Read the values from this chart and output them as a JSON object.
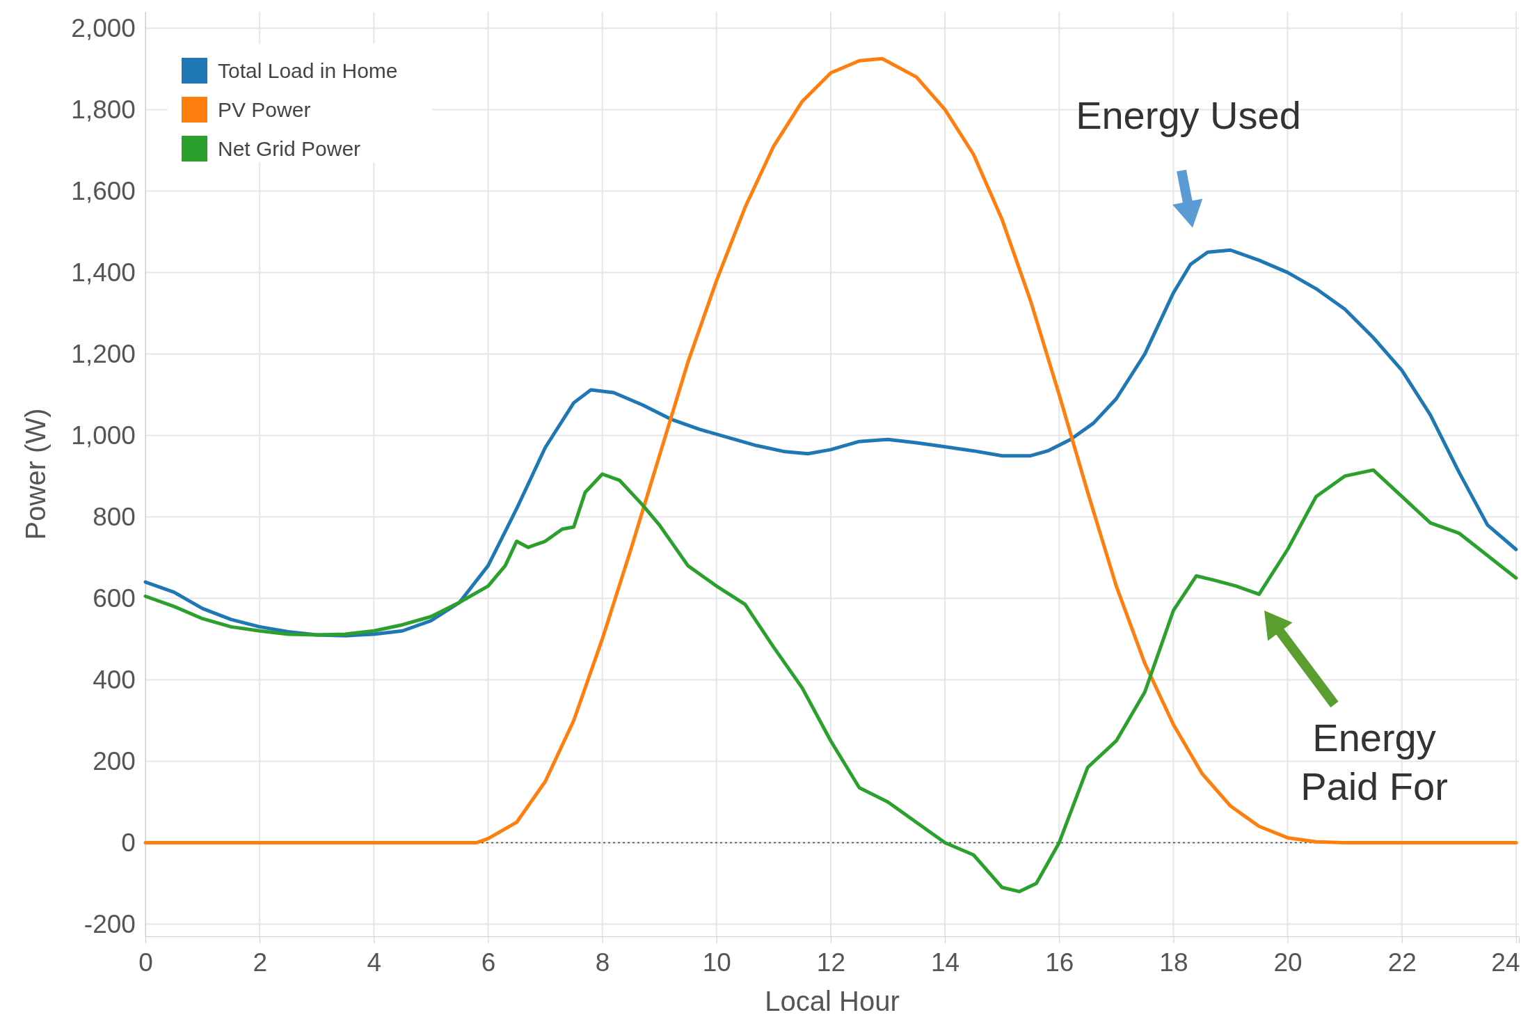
{
  "chart_data": {
    "type": "line",
    "xlabel": "Local Hour",
    "ylabel": "Power (W)",
    "xlim": [
      0,
      24.05
    ],
    "xticks": [
      0,
      2,
      4,
      6,
      8,
      10,
      12,
      14,
      16,
      18,
      20,
      22,
      24
    ],
    "ylim": [
      -230,
      2040
    ],
    "yticks": [
      {
        "value": -200,
        "label": "-200"
      },
      {
        "value": 0,
        "label": "0"
      },
      {
        "value": 200,
        "label": "200"
      },
      {
        "value": 400,
        "label": "400"
      },
      {
        "value": 600,
        "label": "600"
      },
      {
        "value": 800,
        "label": "800"
      },
      {
        "value": 1000,
        "label": "1,000"
      },
      {
        "value": 1200,
        "label": "1,200"
      },
      {
        "value": 1400,
        "label": "1,400"
      },
      {
        "value": 1600,
        "label": "1,600"
      },
      {
        "value": 1800,
        "label": "1,800"
      },
      {
        "value": 2000,
        "label": "2,000"
      }
    ],
    "grid": true,
    "legend": "top left",
    "marker": "none",
    "line_style": "solid",
    "ref_lines": [
      {
        "axis": "y",
        "value": 0,
        "label": null,
        "color": "#444444",
        "line_style": "dotted"
      }
    ],
    "annotations": [
      "Energy Used",
      "Energy\nPaid For"
    ],
    "series": [
      {
        "name": "Total Load in Home",
        "color": "#1f77b4",
        "x": [
          0,
          0.5,
          1,
          1.5,
          2,
          2.5,
          3,
          3.5,
          4,
          4.5,
          5,
          5.5,
          6,
          6.5,
          7,
          7.5,
          7.8,
          8.2,
          8.7,
          9.2,
          9.7,
          10.2,
          10.7,
          11.2,
          11.6,
          12,
          12.5,
          13,
          13.5,
          14,
          14.5,
          15,
          15.5,
          15.8,
          16.2,
          16.6,
          17,
          17.5,
          18,
          18.3,
          18.6,
          19,
          19.5,
          20,
          20.5,
          21,
          21.5,
          22,
          22.5,
          23,
          23.5,
          24
        ],
        "values": [
          640,
          615,
          575,
          548,
          530,
          518,
          510,
          508,
          512,
          520,
          545,
          590,
          680,
          820,
          970,
          1080,
          1112,
          1105,
          1075,
          1040,
          1015,
          995,
          975,
          960,
          955,
          965,
          985,
          990,
          982,
          972,
          962,
          950,
          950,
          962,
          990,
          1030,
          1090,
          1200,
          1350,
          1420,
          1450,
          1455,
          1430,
          1400,
          1360,
          1310,
          1240,
          1160,
          1050,
          910,
          780,
          720
        ]
      },
      {
        "name": "PV Power",
        "color": "#ff7f0e",
        "x": [
          0,
          5.8,
          6,
          6.5,
          7,
          7.5,
          8,
          8.5,
          9,
          9.5,
          10,
          10.5,
          11,
          11.5,
          12,
          12.5,
          12.9,
          13.5,
          14,
          14.5,
          15,
          15.5,
          16,
          16.5,
          17,
          17.5,
          18,
          18.5,
          19,
          19.5,
          20,
          20.5,
          21,
          24
        ],
        "values": [
          0,
          0,
          10,
          50,
          150,
          300,
          500,
          720,
          950,
          1180,
          1380,
          1560,
          1710,
          1820,
          1890,
          1920,
          1925,
          1880,
          1800,
          1690,
          1530,
          1330,
          1100,
          860,
          630,
          440,
          290,
          170,
          90,
          40,
          12,
          2,
          0,
          0
        ]
      },
      {
        "name": "Net Grid Power",
        "color": "#2ca02c",
        "x": [
          0,
          0.5,
          1,
          1.5,
          2,
          2.5,
          3,
          3.5,
          4,
          4.5,
          5,
          5.5,
          6,
          6.3,
          6.5,
          6.7,
          7,
          7.3,
          7.5,
          7.7,
          8,
          8.3,
          8.7,
          9,
          9.5,
          10,
          10.5,
          11,
          11.5,
          12,
          12.5,
          13,
          13.5,
          14,
          14.5,
          15,
          15.3,
          15.6,
          16,
          16.5,
          17,
          17.5,
          18,
          18.4,
          18.7,
          19.1,
          19.5,
          20,
          20.5,
          21,
          21.5,
          22,
          22.5,
          23,
          23.5,
          24
        ],
        "values": [
          605,
          580,
          550,
          530,
          520,
          512,
          510,
          512,
          520,
          535,
          555,
          590,
          630,
          680,
          740,
          725,
          740,
          770,
          775,
          860,
          905,
          890,
          830,
          780,
          680,
          630,
          585,
          480,
          380,
          250,
          135,
          100,
          50,
          0,
          -30,
          -110,
          -120,
          -100,
          0,
          185,
          250,
          370,
          570,
          655,
          645,
          630,
          610,
          720,
          850,
          900,
          915,
          850,
          785,
          760,
          705,
          650
        ]
      }
    ]
  }
}
